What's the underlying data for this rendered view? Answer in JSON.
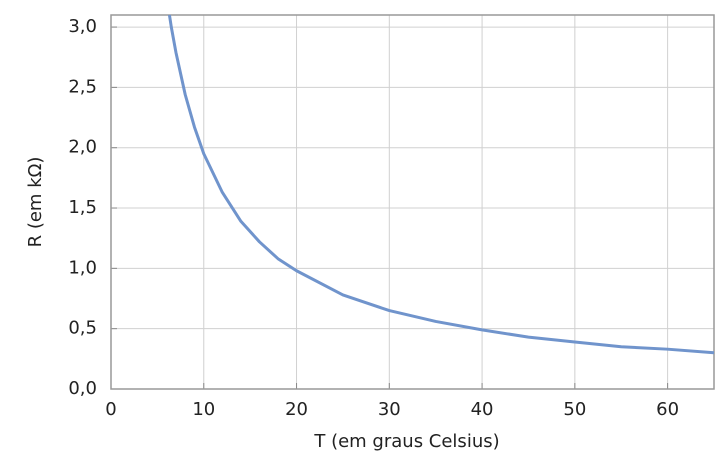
{
  "chart_data": {
    "type": "line",
    "x_label": "T (em graus Celsius)",
    "y_label": "R (em kΩ)",
    "x": [
      6.3,
      6.5,
      7,
      8,
      9,
      10,
      12,
      14,
      16,
      18,
      20,
      25,
      30,
      35,
      40,
      45,
      50,
      55,
      60,
      65
    ],
    "series": [
      {
        "color": "#7094cc",
        "values": [
          3.1,
          3.0,
          2.79,
          2.44,
          2.17,
          1.95,
          1.63,
          1.39,
          1.22,
          1.08,
          0.98,
          0.78,
          0.65,
          0.56,
          0.49,
          0.43,
          0.39,
          0.35,
          0.33,
          0.3
        ]
      }
    ],
    "xlim": [
      0,
      65
    ],
    "xticks": [
      0,
      10,
      20,
      30,
      40,
      50,
      60
    ],
    "ylim": [
      0,
      3.1
    ],
    "yticks": [
      {
        "value": 0,
        "label": "0,0"
      },
      {
        "value": 0.5,
        "label": "0,5"
      },
      {
        "value": 1,
        "label": "1,0"
      },
      {
        "value": 1.5,
        "label": "1,5"
      },
      {
        "value": 2,
        "label": "2,0"
      },
      {
        "value": 2.5,
        "label": "2,5"
      },
      {
        "value": 3,
        "label": "3,0"
      }
    ],
    "grid": true
  }
}
